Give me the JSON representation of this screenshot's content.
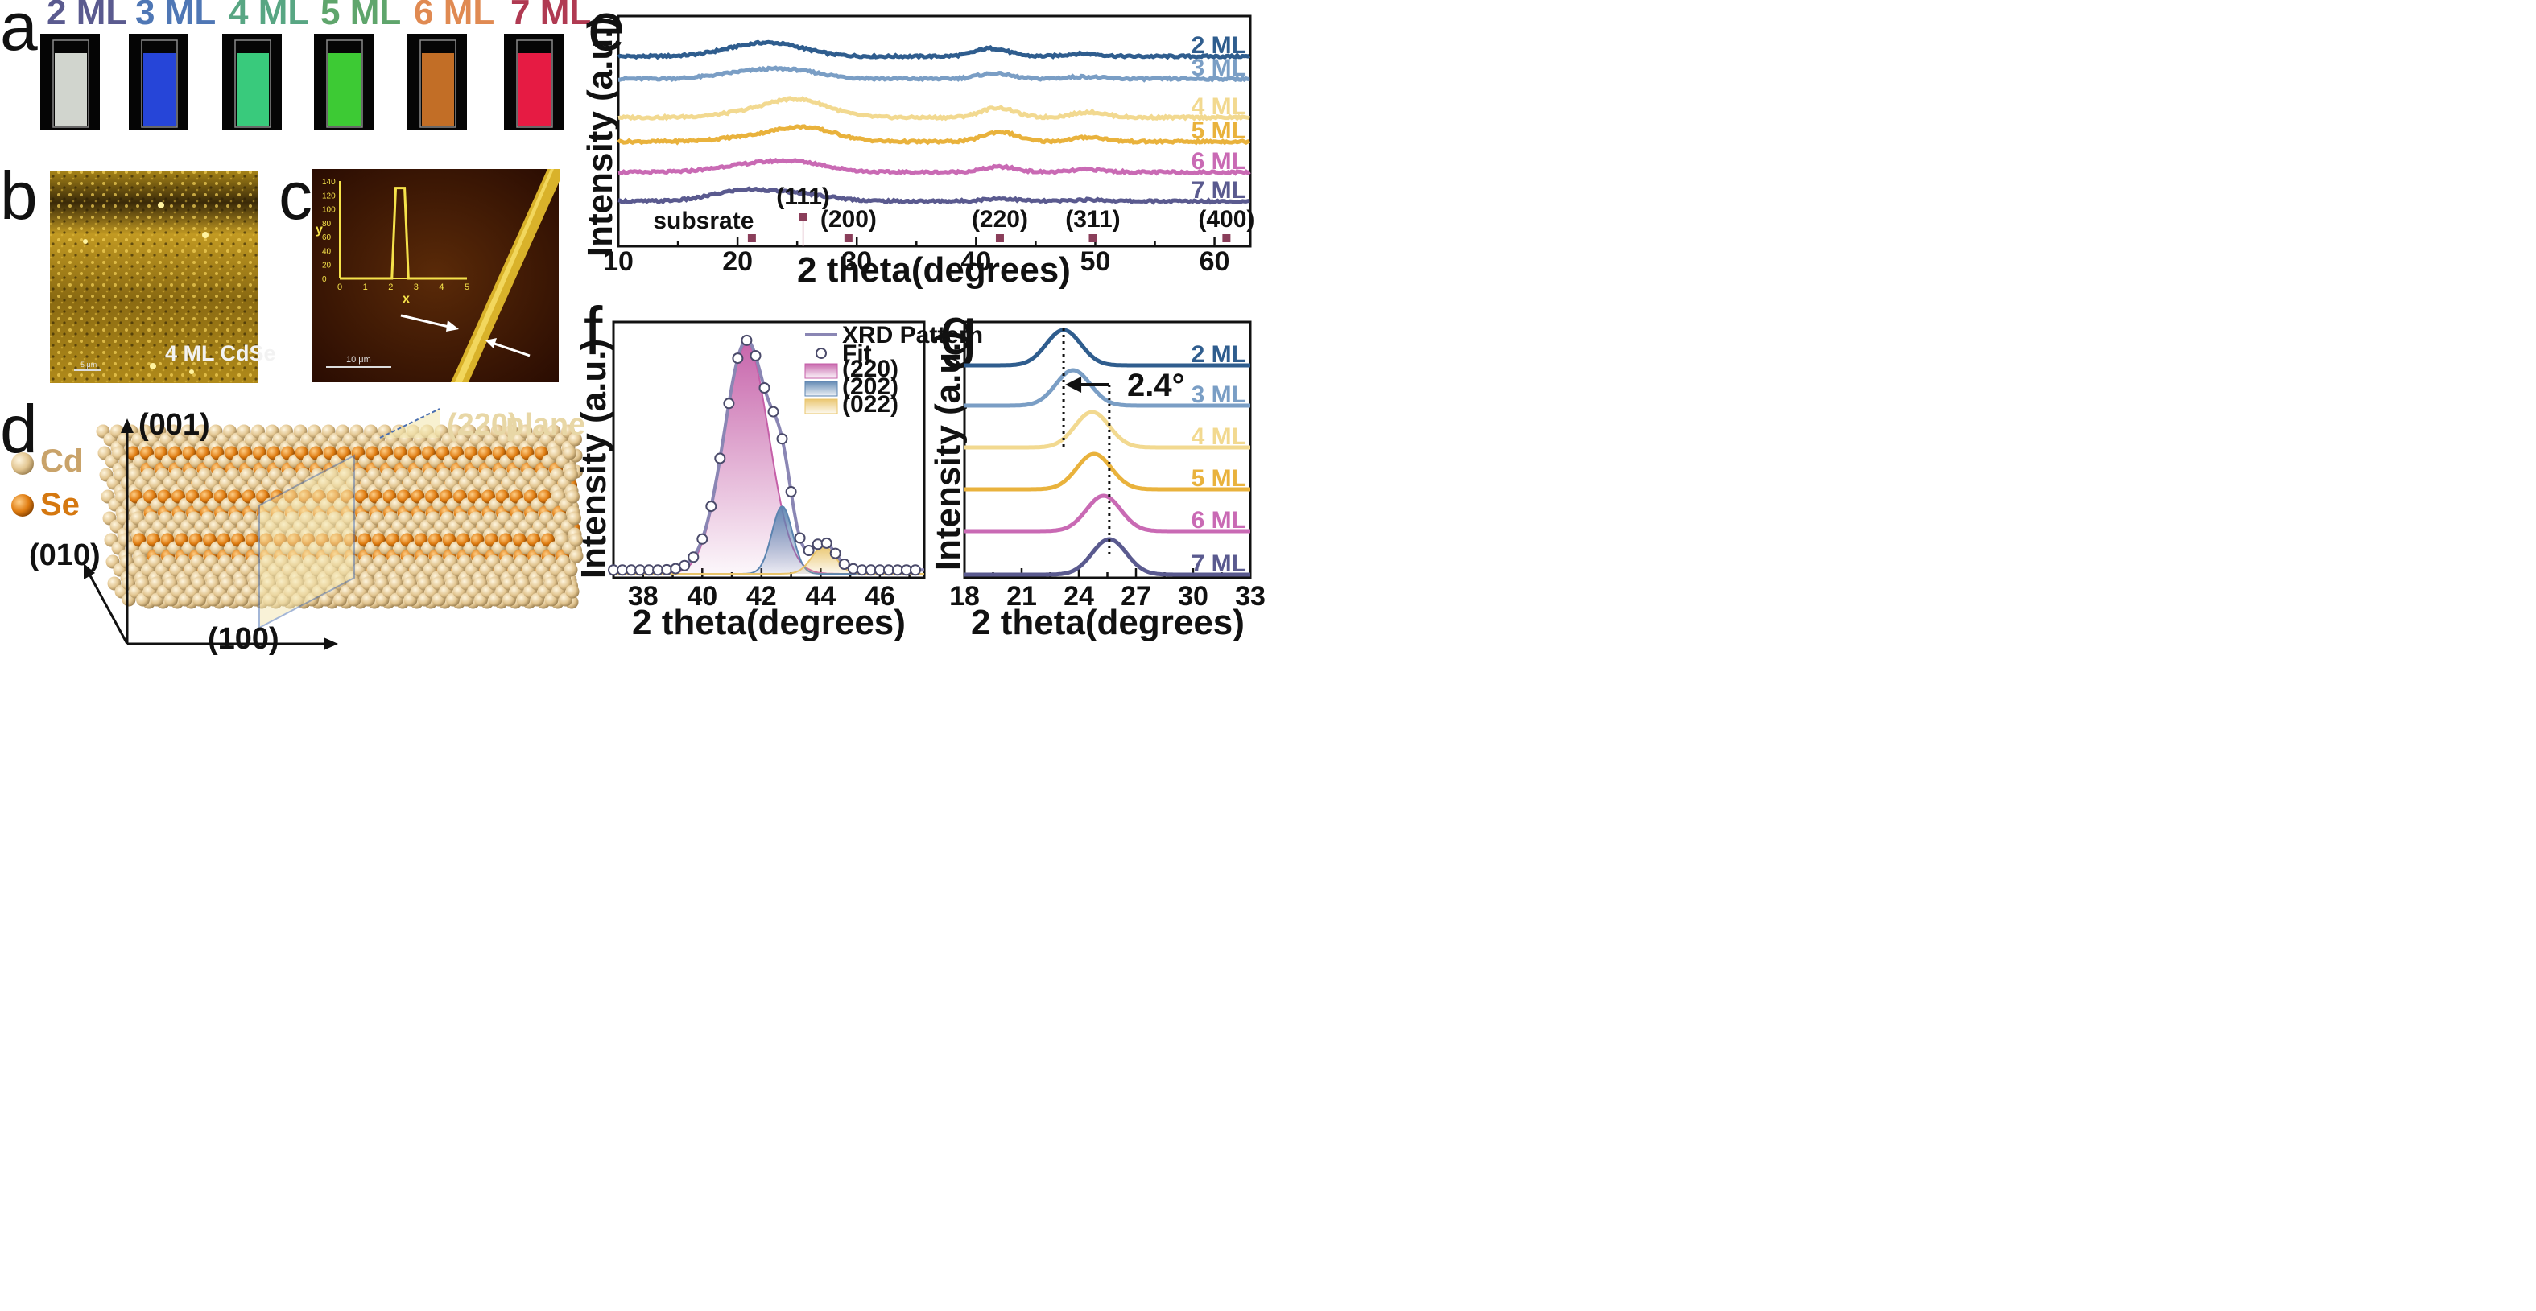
{
  "panel_labels": [
    "a",
    "b",
    "c",
    "d",
    "e",
    "f",
    "g"
  ],
  "panel_a": {
    "cuvettes": [
      {
        "label": "2 ML",
        "color": "#5a5a8f",
        "glow": "#e8ece4"
      },
      {
        "label": "3 ML",
        "color": "#4f77b5",
        "glow": "#2a4df0"
      },
      {
        "label": "4 ML",
        "color": "#58a683",
        "glow": "#3fe08a"
      },
      {
        "label": "5 ML",
        "color": "#5fa56c",
        "glow": "#44e03a"
      },
      {
        "label": "6 ML",
        "color": "#e08a52",
        "glow": "#d77a2a"
      },
      {
        "label": "7 ML",
        "color": "#b03a52",
        "glow": "#ff1e4a"
      }
    ]
  },
  "panel_b": {
    "caption": "4 ML CdSe",
    "scale_text": "5 μm"
  },
  "panel_c": {
    "scale_text": "10 μm",
    "x_label": "x",
    "y_label": "y",
    "x_ticks": [
      "0",
      "1",
      "2",
      "3",
      "4",
      "5"
    ],
    "y_ticks": [
      "0",
      "20",
      "40",
      "60",
      "80",
      "100",
      "120",
      "140"
    ]
  },
  "panel_d": {
    "legend": [
      {
        "name": "Cd",
        "color": "#e2c590"
      },
      {
        "name": "Se",
        "color": "#e07d12"
      }
    ],
    "axes": [
      "(001)",
      "(010)",
      "(100)"
    ],
    "plane_label": "(220)",
    "plane_word": "plane"
  },
  "chart_data": [
    {
      "panel": "e",
      "type": "line",
      "xlabel": "2 theta(degrees)",
      "ylabel": "Intensity (a.u.)",
      "xlim": [
        10,
        63
      ],
      "x_ticks": [
        "10",
        "20",
        "30",
        "40",
        "50",
        "60"
      ],
      "series": [
        {
          "name": "2 ML",
          "color": "#2f5d8e",
          "peaks": [
            [
              20.5,
              0.35
            ],
            [
              23.5,
              0.55
            ],
            [
              41.3,
              0.45
            ],
            [
              49,
              0.15
            ]
          ]
        },
        {
          "name": "3 ML",
          "color": "#7a9ec5",
          "peaks": [
            [
              20.5,
              0.3
            ],
            [
              24.5,
              0.45
            ],
            [
              41.5,
              0.3
            ],
            [
              49,
              0.12
            ]
          ]
        },
        {
          "name": "4 ML",
          "color": "#f2d990",
          "peaks": [
            [
              20.5,
              0.2
            ],
            [
              25,
              1.0
            ],
            [
              41.8,
              0.55
            ],
            [
              49.5,
              0.3
            ]
          ]
        },
        {
          "name": "5 ML",
          "color": "#e9b23c",
          "peaks": [
            [
              20.5,
              0.2
            ],
            [
              25.5,
              0.8
            ],
            [
              42,
              0.55
            ],
            [
              49.5,
              0.25
            ]
          ]
        },
        {
          "name": "6 ML",
          "color": "#c96ab4",
          "peaks": [
            [
              20.5,
              0.35
            ],
            [
              25,
              0.55
            ],
            [
              42,
              0.3
            ],
            [
              49.5,
              0.15
            ]
          ]
        },
        {
          "name": "7 ML",
          "color": "#5a5a8f",
          "peaks": [
            [
              20.5,
              0.6
            ],
            [
              25.5,
              0.35
            ],
            [
              42,
              0.15
            ],
            [
              49.5,
              0.08
            ]
          ]
        }
      ],
      "reference_peaks": [
        {
          "label": "subsrate",
          "x": 21.2
        },
        {
          "label": "(111)",
          "x": 25.5
        },
        {
          "label": "(200)",
          "x": 29.3
        },
        {
          "label": "(220)",
          "x": 42.0
        },
        {
          "label": "(311)",
          "x": 49.8
        },
        {
          "label": "(400)",
          "x": 61.0
        }
      ]
    },
    {
      "panel": "f",
      "type": "line",
      "xlabel": "2 theta(degrees)",
      "ylabel": "Intensity (a.u.)",
      "xlim": [
        37,
        47.5
      ],
      "x_ticks": [
        "38",
        "40",
        "42",
        "44",
        "46"
      ],
      "legend": [
        "XRD Pattern",
        "Fit",
        "(220)",
        "(202)",
        "(022)"
      ],
      "components": [
        {
          "name": "(220)",
          "color": "#c55fa8",
          "center": 41.5,
          "height": 0.92,
          "sigma": 0.75
        },
        {
          "name": "(202)",
          "color": "#5c84b0",
          "center": 42.7,
          "height": 0.27,
          "sigma": 0.35
        },
        {
          "name": "(022)",
          "color": "#e9c46a",
          "center": 44.1,
          "height": 0.11,
          "sigma": 0.4
        }
      ],
      "pattern_color": "#8a86b4",
      "fit_x": [
        37.0,
        37.3,
        37.6,
        37.9,
        38.2,
        38.5,
        38.8,
        39.1,
        39.4,
        39.7,
        40.0,
        40.3,
        40.6,
        40.9,
        41.2,
        41.5,
        41.8,
        42.1,
        42.4,
        42.7,
        43.0,
        43.3,
        43.6,
        43.9,
        44.2,
        44.5,
        44.8,
        45.1,
        45.4,
        45.7,
        46.0,
        46.3,
        46.6,
        46.9,
        47.2
      ]
    },
    {
      "panel": "g",
      "type": "line",
      "xlabel": "2 theta(degrees)",
      "ylabel": "Intensity (a.u.)",
      "xlim": [
        18,
        33
      ],
      "x_ticks": [
        "18",
        "21",
        "24",
        "27",
        "30",
        "33"
      ],
      "annotation": "2.4°",
      "dashed_lines": [
        23.2,
        25.6
      ],
      "series": [
        {
          "name": "2 ML",
          "color": "#2f5d8e",
          "center": 23.2
        },
        {
          "name": "3 ML",
          "color": "#7a9ec5",
          "center": 23.7
        },
        {
          "name": "4 ML",
          "color": "#f2d990",
          "center": 24.7
        },
        {
          "name": "5 ML",
          "color": "#e9b23c",
          "center": 24.8
        },
        {
          "name": "6 ML",
          "color": "#c96ab4",
          "center": 25.3
        },
        {
          "name": "7 ML",
          "color": "#5a5a8f",
          "center": 25.6
        }
      ]
    }
  ]
}
